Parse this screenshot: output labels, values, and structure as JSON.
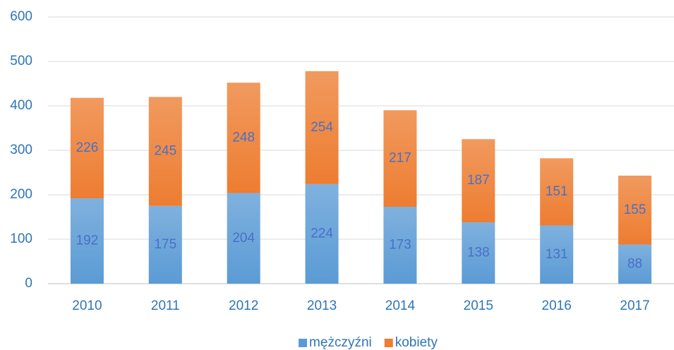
{
  "chart_data": {
    "type": "bar",
    "stacked": true,
    "categories": [
      "2010",
      "2011",
      "2012",
      "2013",
      "2014",
      "2015",
      "2016",
      "2017"
    ],
    "series": [
      {
        "name": "mężczyźni",
        "color": "#5b9bd5",
        "values": [
          192,
          175,
          204,
          224,
          173,
          138,
          131,
          88
        ]
      },
      {
        "name": "kobiety",
        "color": "#ed7d31",
        "values": [
          226,
          245,
          248,
          254,
          217,
          187,
          151,
          155
        ]
      }
    ],
    "ylim": [
      0,
      600
    ],
    "yticks": [
      0,
      100,
      200,
      300,
      400,
      500,
      600
    ],
    "grid": true,
    "legend": "bottom"
  }
}
